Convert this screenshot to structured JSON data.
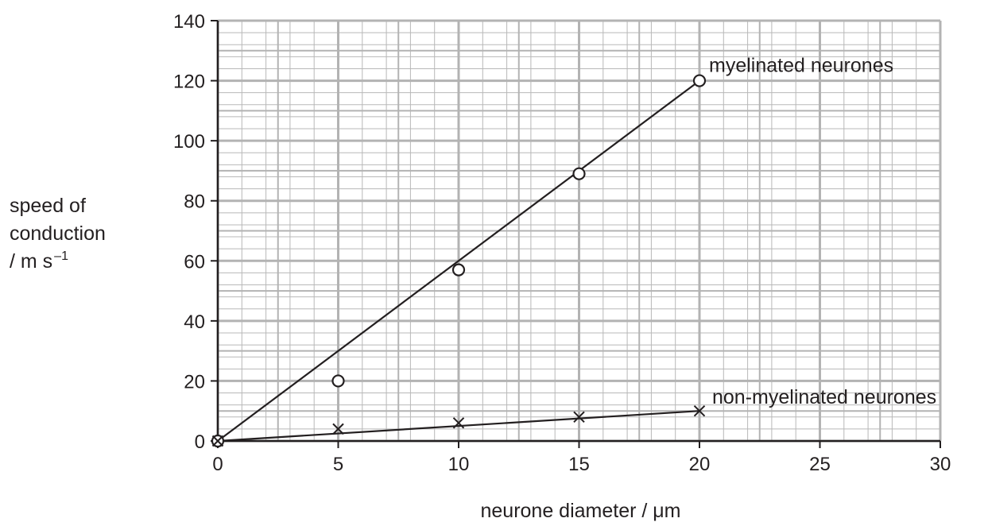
{
  "chart_data": {
    "type": "line",
    "xlabel": "neurone diameter / μm",
    "ylabel_lines": [
      "speed of",
      "conduction",
      "/ m s"
    ],
    "ylabel_superscript": "–1",
    "xlim": [
      0,
      30
    ],
    "ylim": [
      0,
      140
    ],
    "x_ticks": [
      0,
      5,
      10,
      15,
      20,
      25,
      30
    ],
    "y_ticks": [
      0,
      20,
      40,
      60,
      80,
      100,
      120,
      140
    ],
    "grid": true,
    "grid_minor_x": 1,
    "grid_minor_y": 4,
    "series": [
      {
        "name": "myelinated neurones",
        "marker": "circle",
        "points": [
          [
            0,
            0
          ],
          [
            5,
            20
          ],
          [
            10,
            57
          ],
          [
            15,
            89
          ],
          [
            20,
            120
          ]
        ],
        "line_of_best_fit": [
          [
            0,
            0
          ],
          [
            20,
            120
          ]
        ]
      },
      {
        "name": "non-myelinated neurones",
        "marker": "cross",
        "points": [
          [
            0,
            0
          ],
          [
            5,
            4
          ],
          [
            10,
            6
          ],
          [
            15,
            8
          ],
          [
            20,
            10
          ]
        ],
        "line_of_best_fit": [
          [
            0,
            0
          ],
          [
            20,
            10
          ]
        ]
      }
    ],
    "colors": {
      "ink": "#231f20",
      "grid_minor": "#b8b8b8",
      "grid_major": "#b3b3b3"
    }
  }
}
